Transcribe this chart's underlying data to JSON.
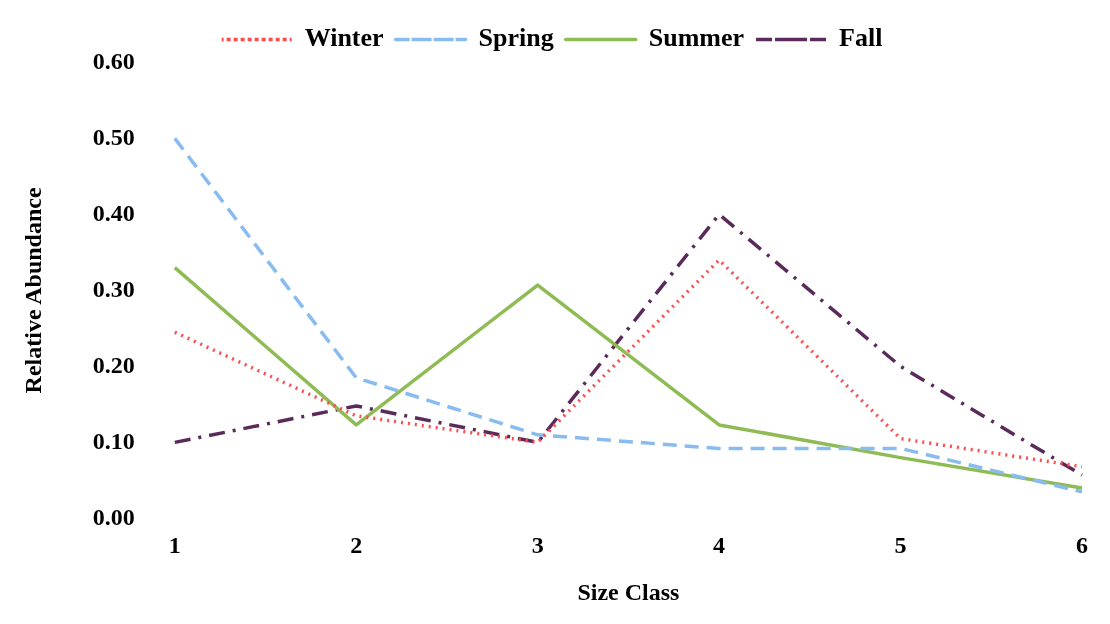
{
  "chart_data": {
    "type": "line",
    "xlabel": "Size Class",
    "ylabel": "Relative Abundance",
    "categories": [
      "1",
      "2",
      "3",
      "4",
      "5",
      "6"
    ],
    "series": [
      {
        "name": "Winter",
        "color": "#ff4b4b",
        "line_style": "dotted",
        "values": [
          0.245,
          0.135,
          0.1,
          0.34,
          0.105,
          0.068
        ]
      },
      {
        "name": "Spring",
        "color": "#88bbf0",
        "line_style": "dashed",
        "values": [
          0.5,
          0.185,
          0.11,
          0.092,
          0.092,
          0.035
        ]
      },
      {
        "name": "Summer",
        "color": "#8fbb55",
        "line_style": "solid",
        "values": [
          0.33,
          0.123,
          0.307,
          0.123,
          0.08,
          0.04
        ]
      },
      {
        "name": "Fall",
        "color": "#5a2a5a",
        "line_style": "dashdot",
        "values": [
          0.1,
          0.148,
          0.1,
          0.4,
          0.2,
          0.057
        ]
      }
    ],
    "ylim": [
      0,
      0.6
    ],
    "yticks": [
      {
        "value": 0,
        "label": "0.00"
      },
      {
        "value": 0.1,
        "label": "0.10"
      },
      {
        "value": 0.2,
        "label": "0.20"
      },
      {
        "value": 0.3,
        "label": "0.30"
      },
      {
        "value": 0.4,
        "label": "0.40"
      },
      {
        "value": 0.5,
        "label": "0.50"
      },
      {
        "value": 0.6,
        "label": "0.60"
      }
    ],
    "grid": false,
    "legend": "top",
    "marker": "none"
  }
}
